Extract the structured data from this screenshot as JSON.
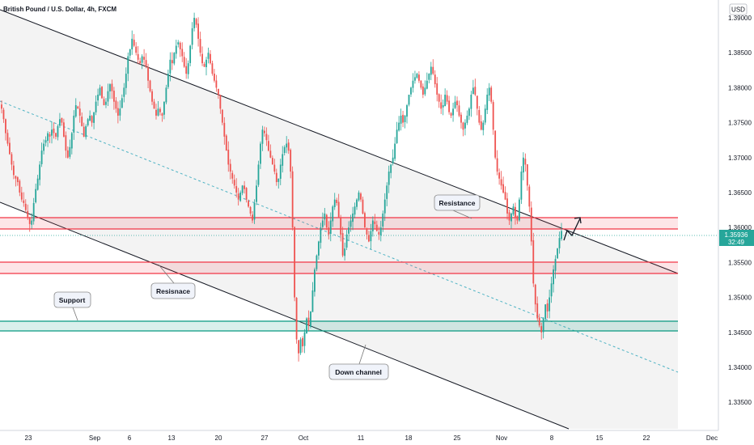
{
  "chart_data": {
    "type": "candlestick",
    "title": "British Pound / U.S. Dollar, 4h, FXCM",
    "currency": "USD",
    "price_tag": {
      "value": "1.35936",
      "countdown": "32:49",
      "color": "#26a69a"
    },
    "y_ticks": [
      "1.39000",
      "1.38500",
      "1.38000",
      "1.37500",
      "1.37000",
      "1.36500",
      "1.36000",
      "1.35500",
      "1.35000",
      "1.34500",
      "1.34000",
      "1.33500"
    ],
    "ylim": [
      1.332,
      1.392
    ],
    "x_ticks": [
      "23",
      "Sep",
      "6",
      "13",
      "20",
      "27",
      "Oct",
      "11",
      "18",
      "25",
      "Nov",
      "8",
      "15",
      "22",
      "Dec"
    ],
    "grid": false,
    "colors": {
      "up": "#26a69a",
      "down": "#ef5350",
      "resistance": "#f23645",
      "support": "#089981",
      "channel": "#131722",
      "midline": "#4fb3c4"
    },
    "series": [
      {
        "date_range": [
          "Aug 20",
          "Nov 10"
        ],
        "close_path": [
          1.377,
          1.3755,
          1.3735,
          1.372,
          1.3705,
          1.369,
          1.3675,
          1.367,
          1.3665,
          1.365,
          1.364,
          1.3635,
          1.3625,
          1.3615,
          1.3605,
          1.361,
          1.3635,
          1.3655,
          1.367,
          1.369,
          1.371,
          1.372,
          1.3725,
          1.3735,
          1.373,
          1.374,
          1.3735,
          1.373,
          1.3745,
          1.3755,
          1.375,
          1.373,
          1.371,
          1.37,
          1.3715,
          1.3735,
          1.376,
          1.3775,
          1.377,
          1.376,
          1.3745,
          1.373,
          1.3745,
          1.3755,
          1.376,
          1.375,
          1.3765,
          1.378,
          1.379,
          1.38,
          1.3785,
          1.3775,
          1.378,
          1.3795,
          1.3805,
          1.3795,
          1.378,
          1.377,
          1.376,
          1.377,
          1.3785,
          1.38,
          1.382,
          1.3845,
          1.3855,
          1.387,
          1.386,
          1.385,
          1.384,
          1.3835,
          1.3845,
          1.384,
          1.383,
          1.381,
          1.3795,
          1.378,
          1.377,
          1.376,
          1.377,
          1.3765,
          1.376,
          1.378,
          1.38,
          1.382,
          1.384,
          1.3835,
          1.385,
          1.386,
          1.3865,
          1.3855,
          1.3845,
          1.383,
          1.382,
          1.3835,
          1.386,
          1.3885,
          1.39,
          1.389,
          1.387,
          1.385,
          1.3835,
          1.383,
          1.384,
          1.385,
          1.3835,
          1.382,
          1.381,
          1.38,
          1.379,
          1.377,
          1.375,
          1.373,
          1.371,
          1.369,
          1.368,
          1.367,
          1.366,
          1.365,
          1.364,
          1.365,
          1.366,
          1.3655,
          1.364,
          1.363,
          1.362,
          1.361,
          1.3635,
          1.366,
          1.369,
          1.372,
          1.374,
          1.3735,
          1.3725,
          1.371,
          1.37,
          1.369,
          1.368,
          1.3665,
          1.367,
          1.369,
          1.3705,
          1.3715,
          1.372,
          1.371,
          1.368,
          1.36,
          1.35,
          1.344,
          1.342,
          1.344,
          1.343,
          1.345,
          1.347,
          1.346,
          1.348,
          1.351,
          1.354,
          1.356,
          1.358,
          1.36,
          1.361,
          1.362,
          1.36,
          1.359,
          1.361,
          1.363,
          1.364,
          1.3635,
          1.3615,
          1.359,
          1.356,
          1.357,
          1.359,
          1.36,
          1.361,
          1.362,
          1.363,
          1.364,
          1.365,
          1.364,
          1.362,
          1.36,
          1.359,
          1.358,
          1.3595,
          1.361,
          1.3605,
          1.3595,
          1.359,
          1.36,
          1.362,
          1.364,
          1.366,
          1.368,
          1.369,
          1.37,
          1.372,
          1.374,
          1.375,
          1.376,
          1.375,
          1.376,
          1.3775,
          1.379,
          1.38,
          1.381,
          1.3815,
          1.382,
          1.381,
          1.38,
          1.379,
          1.38,
          1.381,
          1.382,
          1.383,
          1.382,
          1.3805,
          1.379,
          1.378,
          1.377,
          1.3775,
          1.379,
          1.378,
          1.3765,
          1.376,
          1.377,
          1.378,
          1.3775,
          1.376,
          1.375,
          1.374,
          1.375,
          1.376,
          1.377,
          1.379,
          1.38,
          1.379,
          1.377,
          1.375,
          1.374,
          1.375,
          1.377,
          1.379,
          1.38,
          1.378,
          1.374,
          1.37,
          1.368,
          1.367,
          1.366,
          1.365,
          1.364,
          1.362,
          1.361,
          1.362,
          1.363,
          1.3615,
          1.361,
          1.364,
          1.368,
          1.37,
          1.369,
          1.366,
          1.363,
          1.358,
          1.352,
          1.349,
          1.347,
          1.346,
          1.345,
          1.347,
          1.349,
          1.348,
          1.35,
          1.352,
          1.354,
          1.3555,
          1.357,
          1.3585,
          1.3595
        ]
      }
    ],
    "annotations": [
      {
        "text": "Resistance"
      },
      {
        "text": "Resisnace"
      },
      {
        "text": "Support"
      },
      {
        "text": "Down channel"
      }
    ]
  }
}
